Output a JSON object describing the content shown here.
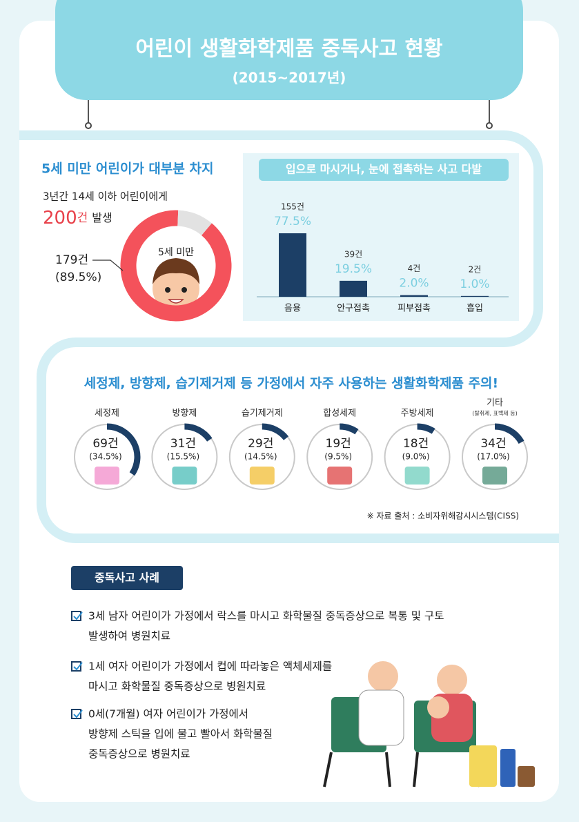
{
  "header": {
    "title": "어린이 생활화학제품 중독사고 현황",
    "subtitle": "(2015~2017년)"
  },
  "chart_data": [
    {
      "type": "pie",
      "title": "5세 미만 어린이가 대부분 차지",
      "intro": "3년간 14세 이하 어린이에게",
      "total": 200,
      "total_unit": "건",
      "total_tail": "발생",
      "categories": [
        "5세 미만",
        null
      ],
      "values": [
        179,
        21
      ],
      "value_labels": [
        "179건",
        null
      ],
      "shares": [
        89.5,
        10.5
      ],
      "share_labels": [
        "(89.5%)",
        null
      ],
      "colors": [
        "#f4525b",
        "#e2e2e2"
      ]
    },
    {
      "type": "bar",
      "title": "입으로 마시거나, 눈에 접촉하는 사고 다발",
      "categories": [
        "음용",
        "안구접촉",
        "피부접촉",
        "흡입"
      ],
      "values": [
        155,
        39,
        4,
        2
      ],
      "value_labels": [
        "155건",
        "39건",
        "4건",
        "2건"
      ],
      "shares": [
        77.5,
        19.5,
        2.0,
        1.0
      ],
      "share_labels": [
        "77.5%",
        "19.5%",
        "2.0%",
        "1.0%"
      ],
      "color": "#1c3f66"
    },
    {
      "type": "donuts",
      "title": "세정제, 방향제, 습기제거제 등 가정에서 자주 사용하는 생활화학제품 주의!",
      "categories": [
        "세정제",
        "방향제",
        "습기제거제",
        "합성세제",
        "주방세제",
        "기타"
      ],
      "category_notes": [
        null,
        null,
        null,
        null,
        null,
        "(탈취제, 표백제 등)"
      ],
      "values": [
        69,
        31,
        29,
        19,
        18,
        34
      ],
      "value_labels": [
        "69건",
        "31건",
        "29건",
        "19건",
        "18건",
        "34건"
      ],
      "shares": [
        34.5,
        15.5,
        14.5,
        9.5,
        9.0,
        17.0
      ],
      "share_labels": [
        "(34.5%)",
        "(15.5%)",
        "(14.5%)",
        "(9.5%)",
        "(9.0%)",
        "(17.0%)"
      ],
      "color": "#1c3f66",
      "source": "※ 자료 출처 : 소비자위해감시시스템(CISS)"
    }
  ],
  "cases": {
    "title": "중독사고 사례",
    "items": [
      [
        "3세 남자 어린이가 가정에서 락스를 마시고 화학물질 중독증상으로 복통 및 구토",
        "발생하여 병원치료"
      ],
      [
        "1세 여자 어린이가 가정에서 컵에 따라놓은 액체세제를",
        "마시고 화학물질  중독증상으로 병원치료"
      ],
      [
        "0세(7개월) 여자 어린이가 가정에서",
        "방향제 스틱을 입에 물고 빨아서 화학물질",
        "중독증상으로 병원치료"
      ]
    ]
  }
}
